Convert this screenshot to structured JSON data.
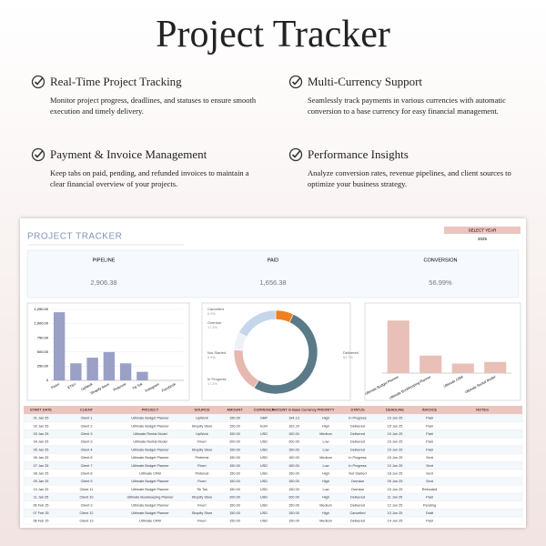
{
  "header": {
    "title": "Project Tracker"
  },
  "features": [
    {
      "title": "Real-Time Project Tracking",
      "description": "Monitor project progress, deadlines, and statuses to ensure smooth execution and timely delivery."
    },
    {
      "title": "Multi-Currency Support",
      "description": "Seamlessly track payments in various currencies with automatic conversion to a base currency for easy financial management."
    },
    {
      "title": "Payment & Invoice Management",
      "description": "Keep tabs on paid, pending, and refunded invoices to maintain a clear financial overview of your projects."
    },
    {
      "title": "Performance Insights",
      "description": "Analyze conversion rates, revenue pipelines, and client sources to optimize your business strategy."
    }
  ],
  "dashboard": {
    "title": "PROJECT TRACKER",
    "select_year": {
      "label": "SELECT YEAR",
      "value": "2025"
    },
    "kpis": [
      {
        "label": "PIPELINE",
        "value": "2,906.38"
      },
      {
        "label": "PAID",
        "value": "1,656.38"
      },
      {
        "label": "CONVERSION",
        "value": "56.99%"
      }
    ],
    "charts": [
      {
        "type": "bar",
        "categories": [
          "Fiverr",
          "ETSY",
          "UpWork",
          "Shopify Store",
          "Pinterest",
          "Tik Tok",
          "Instagram",
          "Facebook"
        ],
        "values": [
          1200,
          300,
          400,
          500,
          300,
          150,
          0,
          0
        ],
        "color": "#9aa0c6",
        "ylim": [
          0,
          1250
        ],
        "yticks": [
          0,
          {
            "value": 250,
            "label": "250.00"
          },
          {
            "value": 500,
            "label": "500.00"
          },
          {
            "value": 750,
            "label": "750.00"
          },
          {
            "value": 1000,
            "label": "1,000.00"
          },
          {
            "value": 1250,
            "label": "1,250.00"
          }
        ]
      },
      {
        "type": "donut",
        "categories": [
          "Cancelled",
          "Delivered",
          "In Progress",
          "Not Started",
          "Overdue"
        ],
        "values": [
          6.9,
          51.7,
          17.2,
          6.9,
          17.2
        ],
        "value_labels": [
          "6.9%",
          "51.7%",
          "17.2%",
          "6.9%",
          "17.2%"
        ],
        "colors": [
          "#f07f1f",
          "#5a7a88",
          "#e6b8b0",
          "#eef2f8",
          "#c5d6ea"
        ]
      },
      {
        "type": "bar",
        "categories": [
          "Ultimate Budget Planner",
          "Ultimate Bookkeeping Planner",
          "Ultimate CRM",
          "Ultimate Rental Model"
        ],
        "values": [
          1650,
          550,
          300,
          350
        ],
        "color": "#e8c0b8",
        "ylim": [
          0,
          2000
        ]
      }
    ],
    "table": {
      "columns": [
        "START DATE",
        "CLIENT",
        "PROJECT",
        "SOURCE",
        "AMOUNT",
        "CURRENCY",
        "AMOUNT in Base Currency",
        "PRIORITY",
        "STATUS",
        "DEADLINE",
        "INVOICE",
        "NOTES"
      ],
      "rows": [
        [
          "01 Jan 25",
          "Client 1",
          "Ultimate Budget Planner",
          "UpWork",
          "150.00",
          "GBP",
          "194.13",
          "High",
          "In Progress",
          "15 Jun 25",
          "Paid"
        ],
        [
          "02 Jan 25",
          "Client 2",
          "Ultimate Budget Planner",
          "Shopify Store",
          "150.00",
          "EUR",
          "162.29",
          "High",
          "Delivered",
          "15 Jun 25",
          "Paid"
        ],
        [
          "03 Jan 25",
          "Client 3",
          "Ultimate Rental Model",
          "UpWork",
          "150.00",
          "USD",
          "150.00",
          "Medium",
          "Delivered",
          "15 Jun 25",
          "Paid"
        ],
        [
          "04 Jan 25",
          "Client 3",
          "Ultimate Rental Model",
          "Fiverr",
          "200.00",
          "USD",
          "200.00",
          "Low",
          "Delivered",
          "15 Jun 25",
          "Paid"
        ],
        [
          "05 Jan 25",
          "Client 4",
          "Ultimate Budget Planner",
          "Shopify Store",
          "150.00",
          "USD",
          "150.00",
          "Low",
          "Delivered",
          "15 Jun 25",
          "Paid"
        ],
        [
          "06 Jan 25",
          "Client 6",
          "Ultimate Budget Planner",
          "Pinterest",
          "150.00",
          "USD",
          "150.00",
          "Medium",
          "In Progress",
          "15 Jun 25",
          "Sent"
        ],
        [
          "07 Jan 25",
          "Client 7",
          "Ultimate Budget Planner",
          "Fiverr",
          "150.00",
          "USD",
          "150.00",
          "Low",
          "In Progress",
          "10 Jun 25",
          "Sent"
        ],
        [
          "08 Jan 25",
          "Client 8",
          "Ultimate CRM",
          "Pinterest",
          "150.00",
          "USD",
          "150.00",
          "High",
          "Not Started",
          "18 Jun 25",
          "Sent"
        ],
        [
          "09 Jan 25",
          "Client 9",
          "Ultimate Budget Planner",
          "Fiverr",
          "150.00",
          "USD",
          "150.00",
          "High",
          "Overdue",
          "09 Jun 25",
          "Sent"
        ],
        [
          "10 Jan 25",
          "Client 11",
          "Ultimate Budget Planner",
          "Tik Tok",
          "150.00",
          "USD",
          "150.00",
          "Low",
          "Overdue",
          "15 Jun 25",
          "Refunded"
        ],
        [
          "11 Jan 25",
          "Client 10",
          "Ultimate Bookkeeping Planner",
          "Shopify Store",
          "200.00",
          "USD",
          "200.00",
          "High",
          "Delivered",
          "11 Jun 25",
          "Paid"
        ],
        [
          "06 Feb 25",
          "Client 3",
          "Ultimate Budget Planner",
          "Fiverr",
          "150.00",
          "USD",
          "150.00",
          "Medium",
          "Delivered",
          "12 Jun 25",
          "Pending"
        ],
        [
          "07 Feb 25",
          "Client 12",
          "Ultimate Budget Planner",
          "Shopify Store",
          "150.00",
          "USD",
          "150.00",
          "High",
          "Cancelled",
          "13 Jun 25",
          "Draft"
        ],
        [
          "08 Feb 25",
          "Client 13",
          "Ultimate CRM",
          "Fiverr",
          "150.00",
          "USD",
          "150.00",
          "Medium",
          "Delivered",
          "14 Jun 25",
          "Paid"
        ]
      ]
    }
  }
}
